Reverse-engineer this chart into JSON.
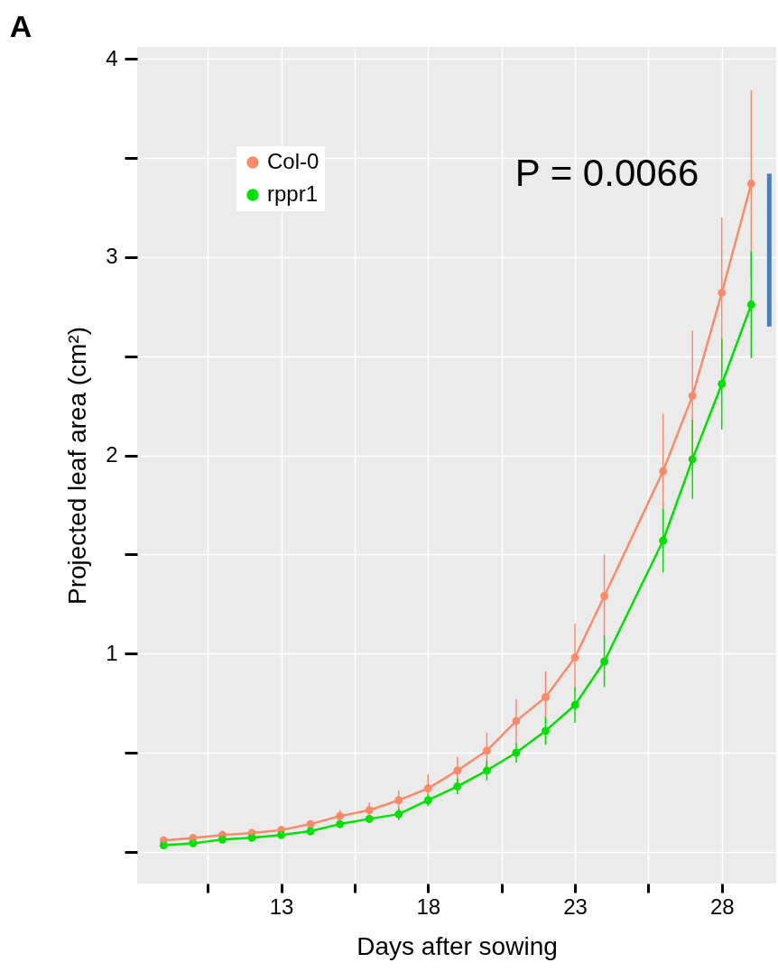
{
  "chart_data": {
    "type": "line",
    "title": "A",
    "xlabel": "Days after sowing",
    "ylabel": "Projected leaf area (cm²)",
    "x": [
      9,
      10,
      11,
      12,
      13,
      14,
      15,
      16,
      17,
      18,
      19,
      20,
      21,
      22,
      23,
      24,
      26,
      27,
      28,
      29
    ],
    "series": [
      {
        "name": "Col-0",
        "color": "#fb8a6a",
        "values": [
          0.057,
          0.07,
          0.085,
          0.095,
          0.11,
          0.14,
          0.18,
          0.21,
          0.26,
          0.32,
          0.41,
          0.51,
          0.66,
          0.78,
          0.98,
          1.29,
          1.92,
          2.3,
          2.82,
          3.37
        ],
        "errors": [
          0.02,
          0.02,
          0.02,
          0.02,
          0.02,
          0.02,
          0.03,
          0.04,
          0.05,
          0.07,
          0.07,
          0.09,
          0.11,
          0.13,
          0.17,
          0.21,
          0.29,
          0.33,
          0.38,
          0.47
        ]
      },
      {
        "name": "rppr1",
        "color": "#00e000",
        "values": [
          0.033,
          0.043,
          0.062,
          0.071,
          0.085,
          0.104,
          0.14,
          0.166,
          0.19,
          0.26,
          0.33,
          0.41,
          0.5,
          0.61,
          0.74,
          0.96,
          1.57,
          1.98,
          2.36,
          2.76
        ],
        "errors": [
          0.01,
          0.01,
          0.01,
          0.01,
          0.01,
          0.02,
          0.02,
          0.02,
          0.03,
          0.03,
          0.04,
          0.05,
          0.05,
          0.07,
          0.09,
          0.13,
          0.16,
          0.2,
          0.23,
          0.27
        ]
      }
    ],
    "xlim": [
      8.1,
      29.85
    ],
    "xticks": [
      {
        "value": 10.5,
        "label": null
      },
      13,
      {
        "value": 15.5,
        "label": null
      },
      18,
      {
        "value": 20.5,
        "label": null
      },
      23,
      {
        "value": 25.5,
        "label": null
      },
      28
    ],
    "ylim": [
      -0.16,
      4.06
    ],
    "yticks": [
      {
        "value": 0,
        "label": null
      },
      {
        "value": 0.5,
        "label": null
      },
      1,
      {
        "value": 1.5,
        "label": null
      },
      2,
      {
        "value": 2.5,
        "label": null
      },
      3,
      {
        "value": 3.5,
        "label": null
      },
      4
    ],
    "annotations": [
      {
        "text": "P = 0.0066",
        "x": 29,
        "y": 3.42
      }
    ],
    "grid": true,
    "legend": "top left",
    "marker": "circle",
    "line_style": "solid"
  }
}
